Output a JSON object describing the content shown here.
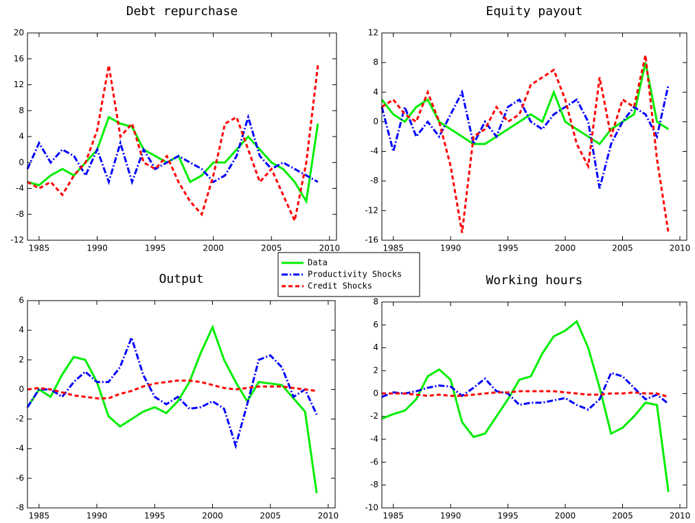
{
  "chart_data": [
    {
      "type": "line",
      "title": "Debt repurchase",
      "x": [
        1984,
        1985,
        1986,
        1987,
        1988,
        1989,
        1990,
        1991,
        1992,
        1993,
        1994,
        1995,
        1996,
        1997,
        1998,
        1999,
        2000,
        2001,
        2002,
        2003,
        2004,
        2005,
        2006,
        2007,
        2008,
        2009
      ],
      "xlim": [
        1984,
        2010.6
      ],
      "xticks": [
        1985,
        1990,
        1995,
        2000,
        2005,
        2010
      ],
      "ylim": [
        -12,
        20
      ],
      "yticks": [
        -12,
        -8,
        -4,
        0,
        4,
        8,
        12,
        16,
        20
      ],
      "series": [
        {
          "name": "Data",
          "color": "#00ee00",
          "values": [
            -3,
            -3.5,
            -2,
            -1,
            -2,
            0,
            2,
            7,
            6,
            5.5,
            2,
            1,
            0,
            1,
            -3,
            -2,
            0,
            0,
            2,
            4,
            2,
            0,
            -1,
            -3,
            -6,
            6
          ]
        },
        {
          "name": "Productivity Shocks",
          "color": "#0000ff",
          "values": [
            -1,
            3,
            0,
            2,
            1,
            -2,
            2,
            -3,
            3,
            -3,
            2,
            -1,
            0,
            1,
            0,
            -1,
            -3,
            -2,
            1,
            7,
            1,
            -1,
            0,
            -1,
            -2,
            -3
          ]
        },
        {
          "name": "Credit Shocks",
          "color": "#ff0000",
          "values": [
            -3,
            -4,
            -3,
            -5,
            -2,
            0,
            5,
            15,
            4,
            6,
            0,
            -1,
            1,
            -3,
            -6,
            -8,
            -2,
            6,
            7,
            2,
            -3,
            -1,
            -5,
            -9,
            0,
            15
          ]
        }
      ]
    },
    {
      "type": "line",
      "title": "Equity payout",
      "x": [
        1984,
        1985,
        1986,
        1987,
        1988,
        1989,
        1990,
        1991,
        1992,
        1993,
        1994,
        1995,
        1996,
        1997,
        1998,
        1999,
        2000,
        2001,
        2002,
        2003,
        2004,
        2005,
        2006,
        2007,
        2008,
        2009
      ],
      "xlim": [
        1984,
        2010.6
      ],
      "xticks": [
        1985,
        1990,
        1995,
        2000,
        2005,
        2010
      ],
      "ylim": [
        -16,
        12
      ],
      "yticks": [
        -16,
        -12,
        -8,
        -4,
        0,
        4,
        8,
        12
      ],
      "series": [
        {
          "color": "#00ee00",
          "values": [
            3,
            1,
            0,
            2,
            3,
            0,
            -1,
            -2,
            -3,
            -3,
            -2,
            -1,
            0,
            1,
            0,
            4,
            0,
            -1,
            -2,
            -3,
            -1,
            0,
            1,
            8,
            0,
            -1
          ]
        },
        {
          "color": "#0000ff",
          "values": [
            2,
            -4,
            2,
            -2,
            0,
            -2,
            1,
            4,
            -3,
            0,
            -2,
            2,
            3,
            0,
            -1,
            1,
            2,
            3,
            0,
            -9,
            -3,
            0,
            2,
            1,
            -2,
            5
          ]
        },
        {
          "color": "#ff0000",
          "values": [
            2,
            3,
            1,
            0,
            4,
            0,
            -6,
            -15,
            -2,
            -1,
            2,
            0,
            1,
            5,
            6,
            7,
            3,
            -3,
            -6,
            6,
            -2,
            3,
            2,
            9,
            -5,
            -15
          ]
        }
      ]
    },
    {
      "type": "line",
      "title": "Output",
      "x": [
        1984,
        1985,
        1986,
        1987,
        1988,
        1989,
        1990,
        1991,
        1992,
        1993,
        1994,
        1995,
        1996,
        1997,
        1998,
        1999,
        2000,
        2001,
        2002,
        2003,
        2004,
        2005,
        2006,
        2007,
        2008,
        2009
      ],
      "xlim": [
        1984,
        2010.6
      ],
      "xticks": [
        1985,
        1990,
        1995,
        2000,
        2005,
        2010
      ],
      "ylim": [
        -8,
        6
      ],
      "yticks": [
        -8,
        -6,
        -4,
        -2,
        0,
        2,
        4,
        6
      ],
      "series": [
        {
          "color": "#00ee00",
          "values": [
            -1.2,
            0,
            -0.5,
            1,
            2.2,
            2,
            0.5,
            -1.8,
            -2.5,
            -2,
            -1.5,
            -1.2,
            -1.6,
            -0.8,
            0.5,
            2.5,
            4.2,
            2,
            0.5,
            -0.8,
            0.5,
            0.4,
            0.3,
            -0.6,
            -1.5,
            -7
          ]
        },
        {
          "color": "#0000ff",
          "values": [
            -1.2,
            0,
            0,
            -0.5,
            0.5,
            1.2,
            0.5,
            0.5,
            1.5,
            3.5,
            1,
            -0.5,
            -1,
            -0.5,
            -1.3,
            -1.2,
            -0.8,
            -1.3,
            -3.8,
            -1,
            2,
            2.3,
            1.5,
            -0.5,
            0,
            -1.7
          ]
        },
        {
          "color": "#ff0000",
          "values": [
            0,
            0.1,
            0,
            -0.2,
            -0.4,
            -0.5,
            -0.6,
            -0.6,
            -0.3,
            -0.1,
            0.2,
            0.4,
            0.5,
            0.6,
            0.6,
            0.5,
            0.3,
            0.1,
            0,
            0.1,
            0.2,
            0.2,
            0.2,
            0.1,
            0,
            -0.1
          ]
        }
      ]
    },
    {
      "type": "line",
      "title": "Working hours",
      "x": [
        1984,
        1985,
        1986,
        1987,
        1988,
        1989,
        1990,
        1991,
        1992,
        1993,
        1994,
        1995,
        1996,
        1997,
        1998,
        1999,
        2000,
        2001,
        2002,
        2003,
        2004,
        2005,
        2006,
        2007,
        2008,
        2009
      ],
      "xlim": [
        1984,
        2010.6
      ],
      "xticks": [
        1985,
        1990,
        1995,
        2000,
        2005,
        2010
      ],
      "ylim": [
        -10,
        8
      ],
      "yticks": [
        -10,
        -8,
        -6,
        -4,
        -2,
        0,
        2,
        4,
        6,
        8
      ],
      "series": [
        {
          "color": "#00ee00",
          "values": [
            -2.2,
            -1.8,
            -1.5,
            -0.5,
            1.5,
            2.1,
            1.2,
            -2.5,
            -3.8,
            -3.5,
            -2,
            -0.5,
            1.2,
            1.5,
            3.5,
            5,
            5.5,
            6.3,
            4,
            0.5,
            -3.5,
            -3,
            -2,
            -0.8,
            -1,
            -8.6
          ]
        },
        {
          "color": "#0000ff",
          "values": [
            -0.3,
            0.1,
            0,
            0.2,
            0.5,
            0.7,
            0.6,
            -0.2,
            0.5,
            1.3,
            0.2,
            0,
            -1,
            -0.8,
            -0.8,
            -0.6,
            -0.4,
            -1,
            -1.4,
            -0.5,
            1.8,
            1.5,
            0.5,
            -0.5,
            -0.1,
            -0.9
          ]
        },
        {
          "color": "#ff0000",
          "values": [
            0,
            0,
            0,
            -0.1,
            -0.2,
            -0.1,
            -0.2,
            -0.2,
            -0.1,
            0,
            0.1,
            0.1,
            0.2,
            0.2,
            0.2,
            0.2,
            0.1,
            0,
            -0.1,
            -0.1,
            0,
            0,
            0.1,
            0,
            0,
            -0.3
          ]
        }
      ]
    }
  ]
}
